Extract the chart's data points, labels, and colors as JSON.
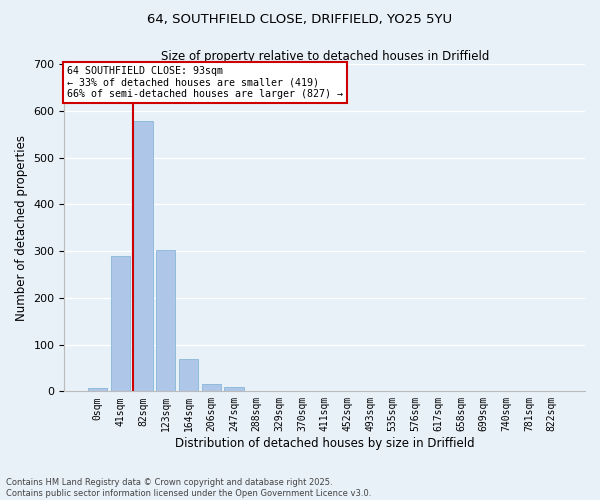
{
  "title_line1": "64, SOUTHFIELD CLOSE, DRIFFIELD, YO25 5YU",
  "title_line2": "Size of property relative to detached houses in Driffield",
  "xlabel": "Distribution of detached houses by size in Driffield",
  "ylabel": "Number of detached properties",
  "categories": [
    "0sqm",
    "41sqm",
    "82sqm",
    "123sqm",
    "164sqm",
    "206sqm",
    "247sqm",
    "288sqm",
    "329sqm",
    "370sqm",
    "411sqm",
    "452sqm",
    "493sqm",
    "535sqm",
    "576sqm",
    "617sqm",
    "658sqm",
    "699sqm",
    "740sqm",
    "781sqm",
    "822sqm"
  ],
  "values": [
    7,
    289,
    578,
    302,
    70,
    16,
    10,
    0,
    0,
    0,
    0,
    0,
    0,
    0,
    0,
    0,
    0,
    0,
    0,
    0,
    0
  ],
  "bar_color": "#aec6e8",
  "bar_edge_color": "#7aafd4",
  "bg_color": "#e8f0f8",
  "grid_color": "#ffffff",
  "vline_color": "#cc0000",
  "annotation_text": "64 SOUTHFIELD CLOSE: 93sqm\n← 33% of detached houses are smaller (419)\n66% of semi-detached houses are larger (827) →",
  "annotation_box_color": "#cc0000",
  "annotation_bg": "#ffffff",
  "ylim": [
    0,
    700
  ],
  "yticks": [
    0,
    100,
    200,
    300,
    400,
    500,
    600,
    700
  ],
  "footnote_line1": "Contains HM Land Registry data © Crown copyright and database right 2025.",
  "footnote_line2": "Contains public sector information licensed under the Open Government Licence v3.0."
}
